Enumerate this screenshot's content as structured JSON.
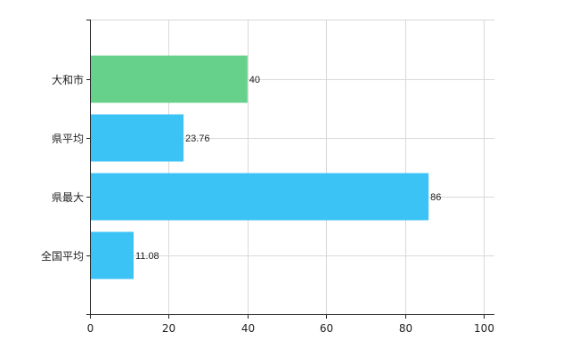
{
  "chart_data": {
    "type": "bar",
    "orientation": "horizontal",
    "categories": [
      "大和市",
      "県平均",
      "県最大",
      "全国平均"
    ],
    "values": [
      40,
      23.76,
      86,
      11.08
    ],
    "data_labels": [
      "40",
      "23.76",
      "86",
      "11.08"
    ],
    "bar_colors": [
      "#66d18a",
      "#3cc3f5",
      "#3cc3f5",
      "#3cc3f5"
    ],
    "xlim": [
      0,
      100
    ],
    "x_ticks": [
      0,
      20,
      40,
      60,
      80,
      100
    ],
    "x_tick_labels": [
      "0",
      "20",
      "40",
      "60",
      "80",
      "100"
    ],
    "grid": true,
    "grid_color": "#d9d9d9",
    "axis_color": "#222222",
    "title": "",
    "xlabel": "",
    "ylabel": ""
  }
}
